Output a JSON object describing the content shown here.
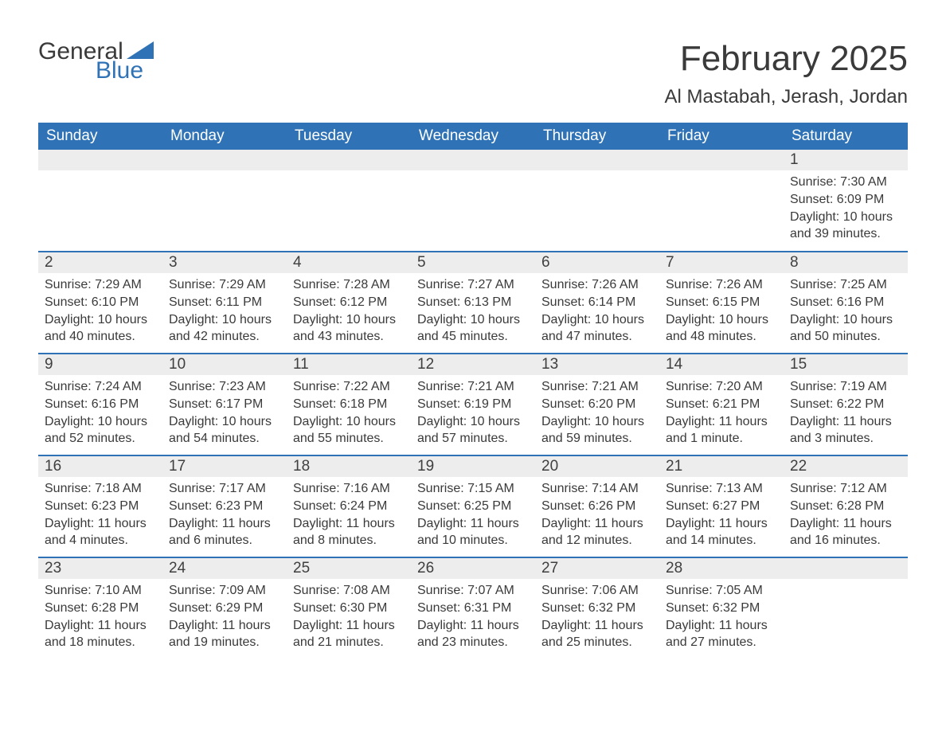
{
  "brand": {
    "general": "General",
    "blue": "Blue",
    "accent": "#2f73b6"
  },
  "title": "February 2025",
  "location": "Al Mastabah, Jerash, Jordan",
  "columns": [
    "Sunday",
    "Monday",
    "Tuesday",
    "Wednesday",
    "Thursday",
    "Friday",
    "Saturday"
  ],
  "calendar": {
    "type": "table",
    "header_bg": "#2f73b6",
    "header_fg": "#ffffff",
    "daynum_bg": "#ededed",
    "row_border": "#2f73b6",
    "text_color": "#3a3a3a",
    "title_fontsize": 44,
    "location_fontsize": 24,
    "header_fontsize": 19,
    "body_fontsize": 16
  },
  "weeks": [
    [
      null,
      null,
      null,
      null,
      null,
      null,
      {
        "n": "1",
        "sr": "Sunrise: 7:30 AM",
        "ss": "Sunset: 6:09 PM",
        "dl": "Daylight: 10 hours and 39 minutes."
      }
    ],
    [
      {
        "n": "2",
        "sr": "Sunrise: 7:29 AM",
        "ss": "Sunset: 6:10 PM",
        "dl": "Daylight: 10 hours and 40 minutes."
      },
      {
        "n": "3",
        "sr": "Sunrise: 7:29 AM",
        "ss": "Sunset: 6:11 PM",
        "dl": "Daylight: 10 hours and 42 minutes."
      },
      {
        "n": "4",
        "sr": "Sunrise: 7:28 AM",
        "ss": "Sunset: 6:12 PM",
        "dl": "Daylight: 10 hours and 43 minutes."
      },
      {
        "n": "5",
        "sr": "Sunrise: 7:27 AM",
        "ss": "Sunset: 6:13 PM",
        "dl": "Daylight: 10 hours and 45 minutes."
      },
      {
        "n": "6",
        "sr": "Sunrise: 7:26 AM",
        "ss": "Sunset: 6:14 PM",
        "dl": "Daylight: 10 hours and 47 minutes."
      },
      {
        "n": "7",
        "sr": "Sunrise: 7:26 AM",
        "ss": "Sunset: 6:15 PM",
        "dl": "Daylight: 10 hours and 48 minutes."
      },
      {
        "n": "8",
        "sr": "Sunrise: 7:25 AM",
        "ss": "Sunset: 6:16 PM",
        "dl": "Daylight: 10 hours and 50 minutes."
      }
    ],
    [
      {
        "n": "9",
        "sr": "Sunrise: 7:24 AM",
        "ss": "Sunset: 6:16 PM",
        "dl": "Daylight: 10 hours and 52 minutes."
      },
      {
        "n": "10",
        "sr": "Sunrise: 7:23 AM",
        "ss": "Sunset: 6:17 PM",
        "dl": "Daylight: 10 hours and 54 minutes."
      },
      {
        "n": "11",
        "sr": "Sunrise: 7:22 AM",
        "ss": "Sunset: 6:18 PM",
        "dl": "Daylight: 10 hours and 55 minutes."
      },
      {
        "n": "12",
        "sr": "Sunrise: 7:21 AM",
        "ss": "Sunset: 6:19 PM",
        "dl": "Daylight: 10 hours and 57 minutes."
      },
      {
        "n": "13",
        "sr": "Sunrise: 7:21 AM",
        "ss": "Sunset: 6:20 PM",
        "dl": "Daylight: 10 hours and 59 minutes."
      },
      {
        "n": "14",
        "sr": "Sunrise: 7:20 AM",
        "ss": "Sunset: 6:21 PM",
        "dl": "Daylight: 11 hours and 1 minute."
      },
      {
        "n": "15",
        "sr": "Sunrise: 7:19 AM",
        "ss": "Sunset: 6:22 PM",
        "dl": "Daylight: 11 hours and 3 minutes."
      }
    ],
    [
      {
        "n": "16",
        "sr": "Sunrise: 7:18 AM",
        "ss": "Sunset: 6:23 PM",
        "dl": "Daylight: 11 hours and 4 minutes."
      },
      {
        "n": "17",
        "sr": "Sunrise: 7:17 AM",
        "ss": "Sunset: 6:23 PM",
        "dl": "Daylight: 11 hours and 6 minutes."
      },
      {
        "n": "18",
        "sr": "Sunrise: 7:16 AM",
        "ss": "Sunset: 6:24 PM",
        "dl": "Daylight: 11 hours and 8 minutes."
      },
      {
        "n": "19",
        "sr": "Sunrise: 7:15 AM",
        "ss": "Sunset: 6:25 PM",
        "dl": "Daylight: 11 hours and 10 minutes."
      },
      {
        "n": "20",
        "sr": "Sunrise: 7:14 AM",
        "ss": "Sunset: 6:26 PM",
        "dl": "Daylight: 11 hours and 12 minutes."
      },
      {
        "n": "21",
        "sr": "Sunrise: 7:13 AM",
        "ss": "Sunset: 6:27 PM",
        "dl": "Daylight: 11 hours and 14 minutes."
      },
      {
        "n": "22",
        "sr": "Sunrise: 7:12 AM",
        "ss": "Sunset: 6:28 PM",
        "dl": "Daylight: 11 hours and 16 minutes."
      }
    ],
    [
      {
        "n": "23",
        "sr": "Sunrise: 7:10 AM",
        "ss": "Sunset: 6:28 PM",
        "dl": "Daylight: 11 hours and 18 minutes."
      },
      {
        "n": "24",
        "sr": "Sunrise: 7:09 AM",
        "ss": "Sunset: 6:29 PM",
        "dl": "Daylight: 11 hours and 19 minutes."
      },
      {
        "n": "25",
        "sr": "Sunrise: 7:08 AM",
        "ss": "Sunset: 6:30 PM",
        "dl": "Daylight: 11 hours and 21 minutes."
      },
      {
        "n": "26",
        "sr": "Sunrise: 7:07 AM",
        "ss": "Sunset: 6:31 PM",
        "dl": "Daylight: 11 hours and 23 minutes."
      },
      {
        "n": "27",
        "sr": "Sunrise: 7:06 AM",
        "ss": "Sunset: 6:32 PM",
        "dl": "Daylight: 11 hours and 25 minutes."
      },
      {
        "n": "28",
        "sr": "Sunrise: 7:05 AM",
        "ss": "Sunset: 6:32 PM",
        "dl": "Daylight: 11 hours and 27 minutes."
      },
      null
    ]
  ]
}
